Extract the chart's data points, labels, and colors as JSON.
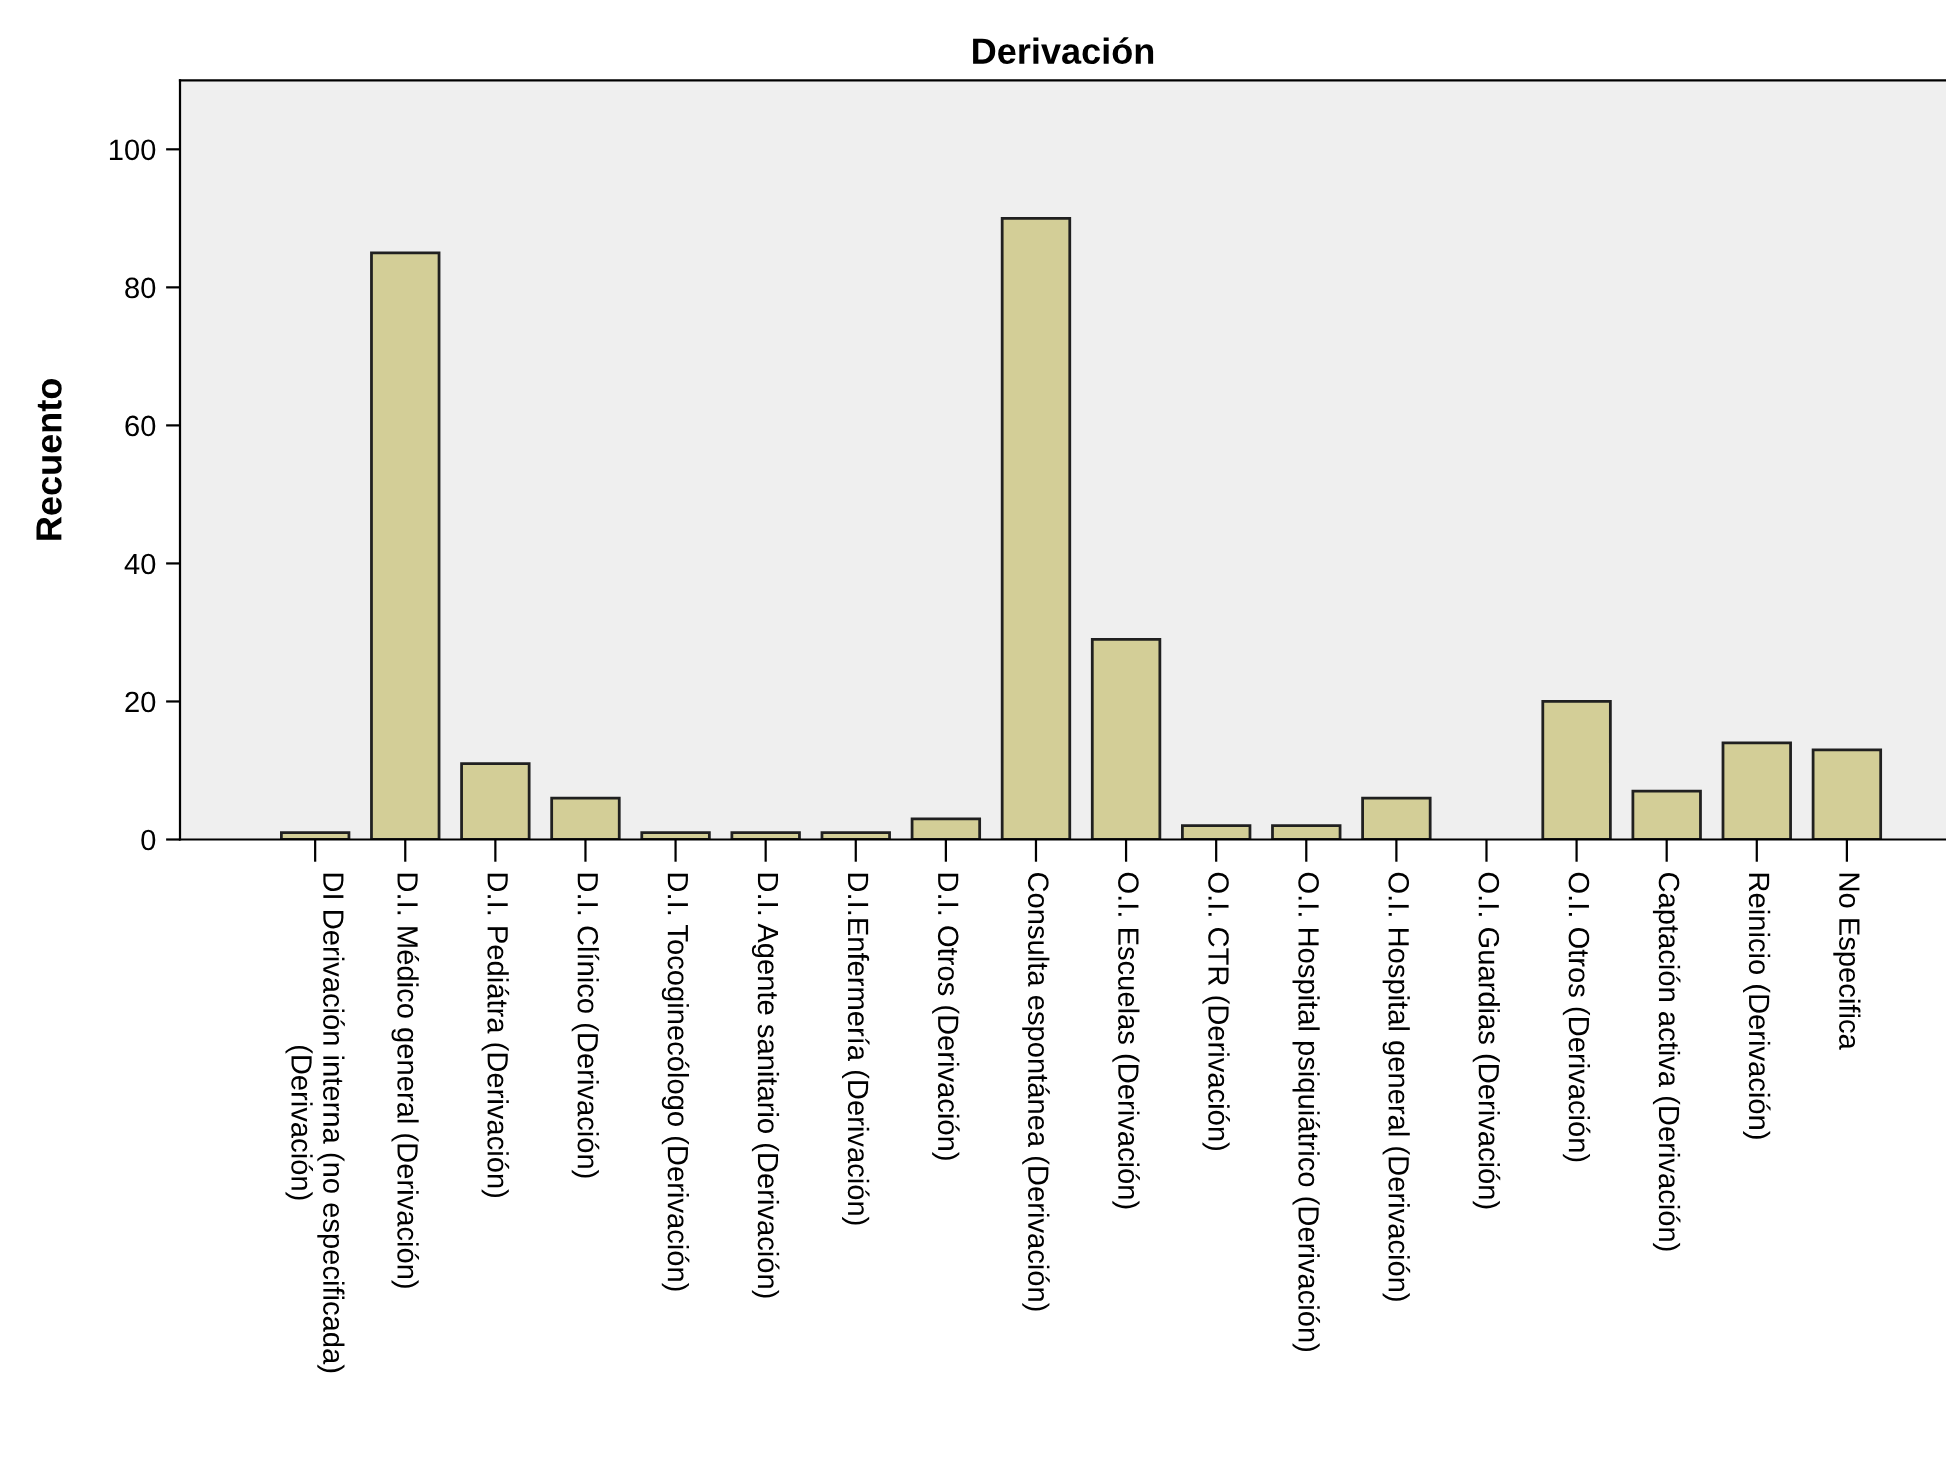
{
  "chart_data": {
    "type": "bar",
    "title": "Derivación",
    "ylabel": "Recuento",
    "categories": [
      "DI Derivación interna (no especificada)\n(Derivación)",
      "D.I. Médico general (Derivación)",
      "D.I. Pediátra (Derivación)",
      "D.I. Clínico (Derivación)",
      "D.I. Tocoginecólogo (Derivación)",
      "D.I. Agente sanitario (Derivación)",
      "D.I.Enfermería (Derivación)",
      "D.I. Otros (Derivación)",
      "Consulta espontánea (Derivación)",
      "O.I. Escuelas (Derivación)",
      "O.I. CTR (Derivación)",
      "O.I. Hospital psiquiátrico (Derivación)",
      "O.I. Hospital general (Derivación)",
      "O.I. Guardias (Derivación)",
      "O.I. Otros (Derivación)",
      "Captación activa (Derivación)",
      "Reinicio (Derivación)",
      "No Especifica"
    ],
    "values": [
      1,
      85,
      11,
      6,
      1,
      1,
      1,
      3,
      90,
      29,
      2,
      2,
      6,
      0,
      20,
      7,
      14,
      13
    ],
    "color": "#d3ce97",
    "ylim": [
      0,
      110
    ],
    "yticks": [
      0,
      20,
      40,
      60,
      80,
      100
    ],
    "grid": false
  }
}
